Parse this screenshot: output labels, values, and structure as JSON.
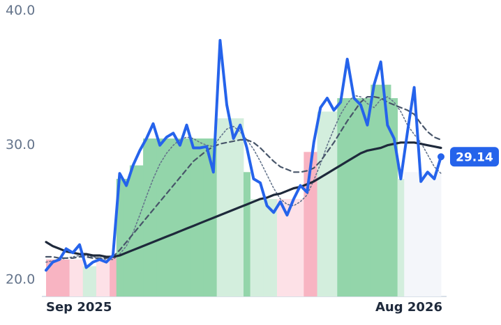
{
  "chart_data": {
    "type": "line",
    "categories": [
      "Sep 2025",
      null,
      null,
      null,
      null,
      null,
      null,
      null,
      null,
      null,
      null,
      null,
      null,
      null,
      null,
      null,
      null,
      null,
      null,
      null,
      null,
      null,
      null,
      null,
      null,
      null,
      null,
      null,
      null,
      null,
      null,
      null,
      null,
      null,
      null,
      null,
      null,
      null,
      null,
      null,
      null,
      null,
      null,
      null,
      null,
      null,
      null,
      null,
      null,
      null,
      null,
      null,
      null,
      null,
      null,
      null,
      null,
      null,
      null,
      "Aug 2026"
    ],
    "ylim": [
      18.75,
      40.8
    ],
    "yticks": [
      {
        "value": 20,
        "label": "20.0"
      },
      {
        "value": 30,
        "label": "30.0"
      },
      {
        "value": 40,
        "label": "40.0"
      }
    ],
    "bars": {
      "values": [
        21.5,
        21.5,
        21.5,
        21.5,
        21.5,
        21.5,
        21.0,
        21.0,
        21.5,
        21.5,
        21.8,
        27.5,
        27.5,
        28.5,
        28.5,
        30.5,
        30.5,
        30.5,
        30.5,
        30.5,
        30.5,
        30.5,
        30.5,
        30.5,
        30.5,
        30.5,
        32.0,
        32.0,
        32.0,
        32.0,
        28.0,
        26.0,
        26.0,
        26.0,
        26.0,
        26.0,
        26.0,
        26.0,
        26.0,
        29.5,
        29.5,
        32.5,
        32.5,
        32.5,
        33.5,
        33.5,
        33.5,
        33.5,
        33.5,
        34.5,
        34.5,
        34.5,
        33.5,
        27.5,
        28.0,
        28.0,
        28.0,
        28.0,
        28.0,
        28.0
      ],
      "colors": [
        "#f8b4c2",
        "#f8b4c2",
        "#f8b4c2",
        "#f8b4c2",
        "#fde1e7",
        "#fde1e7",
        "#d3eedd",
        "#d3eedd",
        "#fde1e7",
        "#fde1e7",
        "#f8b4c2",
        "#93d5aa",
        "#93d5aa",
        "#93d5aa",
        "#93d5aa",
        "#93d5aa",
        "#93d5aa",
        "#93d5aa",
        "#93d5aa",
        "#93d5aa",
        "#93d5aa",
        "#93d5aa",
        "#93d5aa",
        "#93d5aa",
        "#93d5aa",
        "#93d5aa",
        "#d3eedd",
        "#d3eedd",
        "#d3eedd",
        "#d3eedd",
        "#93d5aa",
        "#d3eedd",
        "#d3eedd",
        "#d3eedd",
        "#d3eedd",
        "#fde1e7",
        "#fde1e7",
        "#fde1e7",
        "#fde1e7",
        "#f8b4c2",
        "#f8b4c2",
        "#d3eedd",
        "#d3eedd",
        "#d3eedd",
        "#93d5aa",
        "#93d5aa",
        "#93d5aa",
        "#93d5aa",
        "#93d5aa",
        "#93d5aa",
        "#93d5aa",
        "#93d5aa",
        "#93d5aa",
        "#d3eedd",
        "#f4f6fa",
        "#f4f6fa",
        "#f4f6fa",
        "#f4f6fa",
        "#f4f6fa",
        "#f4f6fa"
      ]
    },
    "series": [
      {
        "color": "#2563eb",
        "style": "bold",
        "values": [
          20.7,
          21.3,
          21.5,
          22.3,
          22.0,
          22.6,
          20.9,
          21.3,
          21.5,
          21.3,
          21.8,
          27.9,
          27.0,
          28.5,
          29.6,
          30.5,
          31.6,
          30.0,
          30.6,
          30.9,
          30.0,
          31.5,
          29.8,
          29.8,
          29.9,
          28.0,
          37.8,
          33.0,
          30.5,
          31.5,
          29.8,
          27.5,
          27.2,
          25.5,
          25.0,
          25.8,
          24.8,
          26.0,
          27.0,
          26.5,
          30.2,
          32.8,
          33.5,
          32.6,
          33.2,
          36.4,
          33.5,
          33.0,
          31.5,
          34.5,
          36.2,
          31.5,
          30.5,
          27.5,
          31.0,
          34.3,
          27.3,
          28.0,
          27.5,
          29.14
        ]
      },
      {
        "color": "#1e293b",
        "style": "bold",
        "values": [
          22.8,
          22.5,
          22.3,
          22.1,
          22.0,
          21.9,
          21.9,
          21.8,
          21.8,
          21.7,
          21.7,
          21.8,
          22.0,
          22.2,
          22.4,
          22.6,
          22.8,
          23.0,
          23.2,
          23.4,
          23.6,
          23.8,
          24.0,
          24.2,
          24.4,
          24.6,
          24.8,
          25.0,
          25.2,
          25.4,
          25.6,
          25.8,
          26.0,
          26.1,
          26.3,
          26.4,
          26.6,
          26.8,
          26.9,
          27.1,
          27.3,
          27.6,
          27.9,
          28.2,
          28.5,
          28.8,
          29.1,
          29.4,
          29.6,
          29.7,
          29.8,
          30.0,
          30.1,
          30.2,
          30.2,
          30.2,
          30.1,
          30.0,
          29.9,
          29.8
        ]
      },
      {
        "color": "#475569",
        "style": "dashed",
        "values": [
          21.7,
          21.7,
          21.6,
          21.6,
          21.6,
          21.7,
          21.7,
          21.6,
          21.6,
          21.6,
          21.7,
          22.2,
          22.8,
          23.4,
          24.0,
          24.6,
          25.2,
          25.8,
          26.4,
          27.0,
          27.6,
          28.2,
          28.8,
          29.2,
          29.6,
          29.9,
          30.1,
          30.2,
          30.3,
          30.4,
          30.4,
          30.2,
          29.8,
          29.3,
          28.8,
          28.4,
          28.2,
          28.0,
          28.0,
          28.1,
          28.3,
          28.8,
          29.5,
          30.2,
          31.0,
          31.8,
          32.5,
          33.2,
          33.6,
          33.6,
          33.5,
          33.2,
          33.0,
          32.8,
          32.6,
          32.3,
          31.6,
          31.0,
          30.6,
          30.4
        ]
      },
      {
        "color": "#64748b",
        "style": "dotted",
        "values": [
          21.3,
          21.4,
          21.5,
          21.6,
          21.7,
          21.8,
          21.8,
          21.7,
          21.6,
          21.5,
          21.5,
          21.9,
          22.5,
          23.5,
          24.8,
          26.2,
          27.5,
          28.6,
          29.4,
          30.0,
          30.4,
          30.6,
          30.5,
          30.2,
          30.0,
          29.9,
          30.6,
          31.2,
          31.4,
          31.0,
          30.4,
          29.7,
          28.8,
          27.8,
          26.8,
          26.0,
          25.6,
          25.5,
          25.8,
          26.3,
          27.4,
          28.6,
          30.0,
          31.2,
          32.3,
          33.1,
          33.7,
          33.6,
          33.1,
          32.8,
          33.4,
          33.6,
          33.2,
          32.5,
          31.5,
          30.8,
          30.2,
          29.3,
          28.4,
          27.9
        ]
      }
    ]
  }
}
